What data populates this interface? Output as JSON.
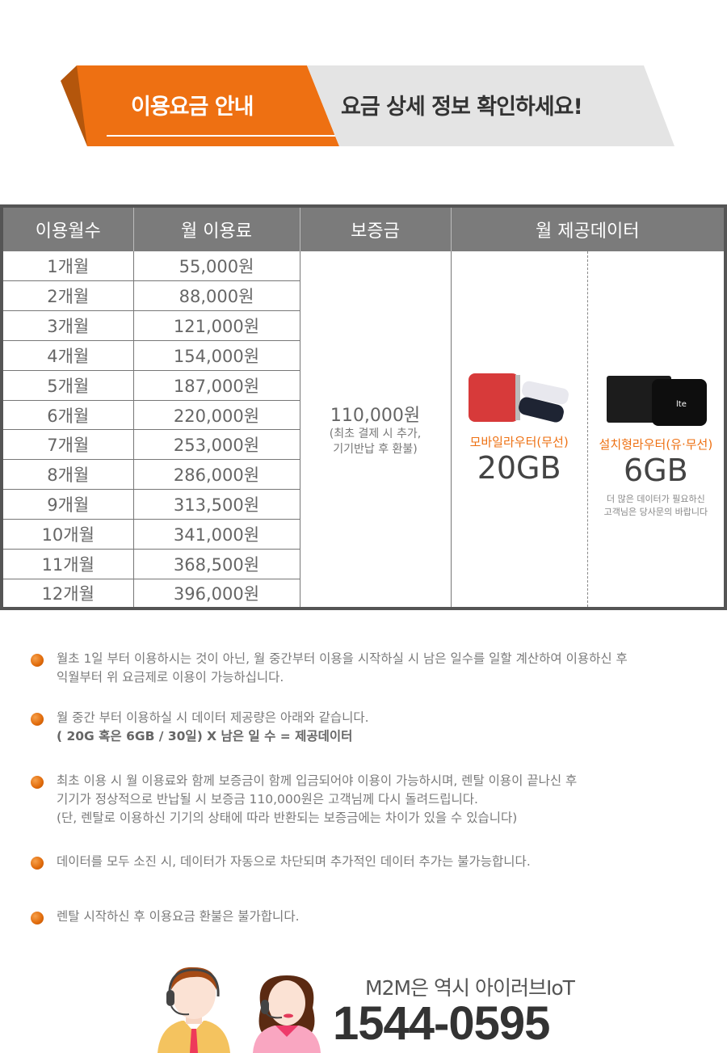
{
  "banner": {
    "title": "이용요금 안내",
    "subtitle": "요금 상세 정보 확인하세요!",
    "accent": "#ee7012"
  },
  "table": {
    "headers": [
      "이용월수",
      "월 이용료",
      "보증금",
      "월 제공데이터"
    ],
    "rows": [
      {
        "months": "1개월",
        "fee": "55,000원"
      },
      {
        "months": "2개월",
        "fee": "88,000원"
      },
      {
        "months": "3개월",
        "fee": "121,000원"
      },
      {
        "months": "4개월",
        "fee": "154,000원"
      },
      {
        "months": "5개월",
        "fee": "187,000원"
      },
      {
        "months": "6개월",
        "fee": "220,000원"
      },
      {
        "months": "7개월",
        "fee": "253,000원"
      },
      {
        "months": "8개월",
        "fee": "286,000원"
      },
      {
        "months": "9개월",
        "fee": "313,500원"
      },
      {
        "months": "10개월",
        "fee": "341,000원"
      },
      {
        "months": "11개월",
        "fee": "368,500원"
      },
      {
        "months": "12개월",
        "fee": "396,000원"
      }
    ],
    "deposit": {
      "amount": "110,000원",
      "note1": "(최초 결제 시 추가,",
      "note2": "기기반납 후 환불)"
    },
    "data": [
      {
        "label": "모바일라우터(무선)",
        "amount": "20GB",
        "icon": "mobile-router-image"
      },
      {
        "label": "설치형라우터(유·무선)",
        "amount": "6GB",
        "icon": "installed-router-image",
        "note1": "더 많은 데이터가 필요하신",
        "note2": "고객님은 당사문의 바랍니다"
      }
    ]
  },
  "notes": [
    {
      "lines": [
        "월초 1일 부터 이용하시는 것이 아닌, 월 중간부터 이용을 시작하실 시 남은 일수를 일할 계산하여 이용하신 후",
        "익월부터 위 요금제로 이용이 가능하십니다."
      ]
    },
    {
      "lines": [
        "월 중간 부터 이용하실 시 데이터 제공량은 아래와 같습니다."
      ],
      "bold": "( 20G 혹은 6GB / 30일) X 남은 일 수 = 제공데이터"
    },
    {
      "lines": [
        "최초 이용 시 월 이용료와 함께 보증금이 함께 입금되어야 이용이 가능하시며, 렌탈 이용이 끝나신 후",
        "기기가 정상적으로 반납될 시 보증금 110,000원은 고객님께 다시 돌려드립니다.",
        "(단, 렌탈로 이용하신 기기의 상태에 따라 반환되는 보증금에는 차이가 있을 수 있습니다)"
      ]
    },
    {
      "lines": [
        "데이터를 모두 소진 시, 데이터가 자동으로 차단되며 추가적인 데이터 추가는 불가능합니다."
      ]
    },
    {
      "lines": [
        "렌탈 시작하신 후 이용요금 환불은 불가합니다."
      ]
    }
  ],
  "footer": {
    "slogan": "M2M은 역시 아이러브IoT",
    "phone": "1544-0595"
  }
}
